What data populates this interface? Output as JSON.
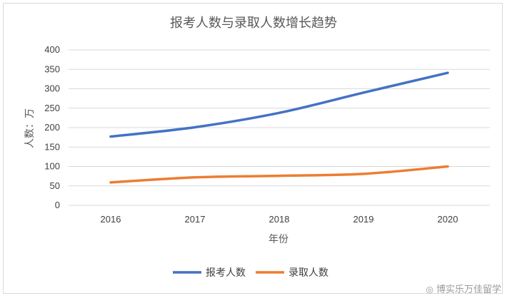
{
  "chart_data": {
    "type": "line",
    "title": "报考人数与录取人数增长趋势",
    "xlabel": "年份",
    "ylabel": "人数：万",
    "categories": [
      "2016",
      "2017",
      "2018",
      "2019",
      "2020"
    ],
    "ylim": [
      0,
      400
    ],
    "yticks": [
      0,
      50,
      100,
      150,
      200,
      250,
      300,
      350,
      400
    ],
    "grid": true,
    "legend_position": "bottom",
    "series": [
      {
        "name": "报考人数",
        "color": "#4472c4",
        "values": [
          177,
          201,
          238,
          290,
          341
        ]
      },
      {
        "name": "录取人数",
        "color": "#ed7d31",
        "values": [
          59,
          72,
          76,
          81,
          100
        ]
      }
    ]
  },
  "watermark": {
    "icon": "weibo-icon",
    "text": "博实乐万佳留学"
  }
}
